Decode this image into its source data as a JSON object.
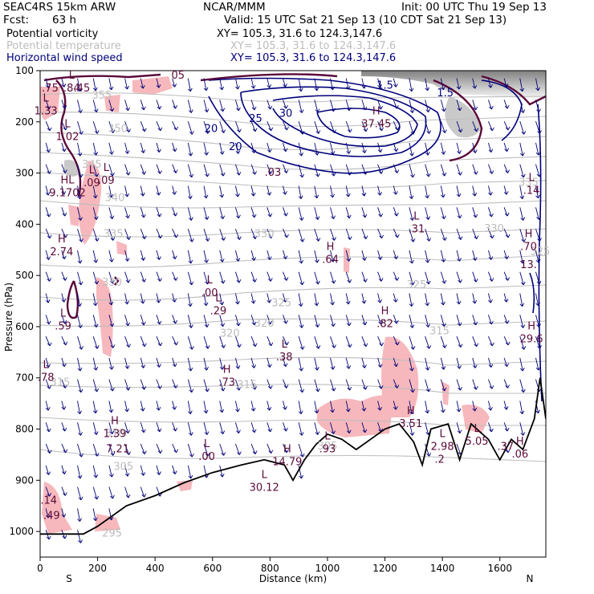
{
  "header": {
    "model": "SEAC4RS 15km ARW",
    "org": "NCAR/MMM",
    "init": "Init: 00 UTC Thu 19 Sep 13",
    "fcst_label": "Fcst:",
    "fcst_value": "63 h",
    "valid": "Valid: 15 UTC Sat 21 Sep 13 (10 CDT Sat 21 Sep 13)"
  },
  "legend": [
    {
      "name": "Potential vorticity",
      "xy": "XY= 105.3, 31.6 to 124.3,147.6",
      "color": "#000000"
    },
    {
      "name": "Potential temperature",
      "xy": "XY= 105.3, 31.6 to 124.3,147.6",
      "color": "#bdbdbd"
    },
    {
      "name": "Horizontal wind speed",
      "xy": "XY= 105.3, 31.6 to 124.3,147.6",
      "color": "#00007a"
    }
  ],
  "colors": {
    "pv_contour": "#5a0a3a",
    "pv_fill": "#f6b8bc",
    "theta": "#bdbdbd",
    "wind": "#00007a",
    "terrain": "#000000",
    "high_pv_gray": "#9a9a9a"
  },
  "chart_data": {
    "type": "cross-section",
    "xlabel": "Distance (km)",
    "ylabel": "Pressure (hPa)",
    "xlim": [
      0,
      1760
    ],
    "ylim": [
      1050,
      100
    ],
    "x_ticks": [
      0,
      200,
      400,
      600,
      800,
      1000,
      1200,
      1400,
      1600
    ],
    "y_ticks": [
      100,
      200,
      300,
      400,
      500,
      600,
      700,
      800,
      900,
      1000
    ],
    "x_end_labels": {
      "left": "S",
      "right": "N"
    },
    "terrain": [
      [
        0,
        1005
      ],
      [
        150,
        1005
      ],
      [
        200,
        990
      ],
      [
        300,
        950
      ],
      [
        400,
        930
      ],
      [
        500,
        905
      ],
      [
        600,
        885
      ],
      [
        700,
        870
      ],
      [
        780,
        860
      ],
      [
        850,
        870
      ],
      [
        880,
        900
      ],
      [
        920,
        860
      ],
      [
        960,
        830
      ],
      [
        1000,
        810
      ],
      [
        1050,
        820
      ],
      [
        1100,
        840
      ],
      [
        1150,
        820
      ],
      [
        1200,
        800
      ],
      [
        1250,
        790
      ],
      [
        1300,
        825
      ],
      [
        1330,
        870
      ],
      [
        1360,
        800
      ],
      [
        1420,
        790
      ],
      [
        1460,
        860
      ],
      [
        1500,
        790
      ],
      [
        1560,
        820
      ],
      [
        1600,
        860
      ],
      [
        1640,
        820
      ],
      [
        1680,
        840
      ],
      [
        1720,
        780
      ],
      [
        1740,
        700
      ],
      [
        1760,
        780
      ]
    ],
    "theta_labels": [
      {
        "x": 215,
        "p": 155,
        "text": "355"
      },
      {
        "x": 270,
        "p": 220,
        "text": "350"
      },
      {
        "x": 180,
        "p": 290,
        "text": "345"
      },
      {
        "x": 260,
        "p": 355,
        "text": "340"
      },
      {
        "x": 255,
        "p": 425,
        "text": "335"
      },
      {
        "x": 1700,
        "p": 325,
        "text": "335"
      },
      {
        "x": 1580,
        "p": 415,
        "text": "330"
      },
      {
        "x": 250,
        "p": 520,
        "text": "330"
      },
      {
        "x": 780,
        "p": 425,
        "text": "330"
      },
      {
        "x": 840,
        "p": 560,
        "text": "325"
      },
      {
        "x": 1310,
        "p": 525,
        "text": "325"
      },
      {
        "x": 1740,
        "p": 460,
        "text": "325"
      },
      {
        "x": 660,
        "p": 620,
        "text": "320"
      },
      {
        "x": 780,
        "p": 600,
        "text": "320"
      },
      {
        "x": 1390,
        "p": 615,
        "text": "315"
      },
      {
        "x": 70,
        "p": 715,
        "text": "315"
      },
      {
        "x": 720,
        "p": 720,
        "text": "315"
      },
      {
        "x": 260,
        "p": 815,
        "text": "310"
      },
      {
        "x": 1000,
        "p": 840,
        "text": "305"
      },
      {
        "x": 290,
        "p": 880,
        "text": "305"
      },
      {
        "x": 250,
        "p": 1010,
        "text": "295"
      }
    ],
    "wind_labels": [
      {
        "x": 595,
        "p": 220,
        "text": "20"
      },
      {
        "x": 680,
        "p": 255,
        "text": "20"
      },
      {
        "x": 750,
        "p": 200,
        "text": "25"
      },
      {
        "x": 855,
        "p": 190,
        "text": "30"
      },
      {
        "x": 1200,
        "p": 135,
        "text": "1.5"
      },
      {
        "x": 1410,
        "p": 150,
        "text": "1.5"
      }
    ],
    "extrema": [
      {
        "x": 35,
        "p": 125,
        "type": "",
        "value": ".75"
      },
      {
        "x": 110,
        "p": 125,
        "type": "L",
        "value": ".84"
      },
      {
        "x": 145,
        "p": 125,
        "type": "",
        "value": ".45"
      },
      {
        "x": 20,
        "p": 170,
        "type": "L",
        "value": "1.33"
      },
      {
        "x": 95,
        "p": 220,
        "type": "L",
        "value": "1.02"
      },
      {
        "x": 95,
        "p": 330,
        "type": "HL",
        "value": "9.1702"
      },
      {
        "x": 180,
        "p": 310,
        "type": "L",
        "value": ".09"
      },
      {
        "x": 230,
        "p": 305,
        "type": "L",
        "value": ".09"
      },
      {
        "x": 810,
        "p": 290,
        "type": "",
        "value": ".03"
      },
      {
        "x": 1170,
        "p": 195,
        "type": "H",
        "value": "37.45"
      },
      {
        "x": 1710,
        "p": 325,
        "type": "L",
        "value": ".14"
      },
      {
        "x": 1310,
        "p": 400,
        "type": "L",
        "value": ".31"
      },
      {
        "x": 1700,
        "p": 435,
        "type": "H",
        "value": ".70"
      },
      {
        "x": 1700,
        "p": 470,
        "type": "",
        "value": "13."
      },
      {
        "x": 75,
        "p": 445,
        "type": "H",
        "value": "2.74"
      },
      {
        "x": 1010,
        "p": 460,
        "type": "H",
        "value": ".64"
      },
      {
        "x": 590,
        "p": 525,
        "type": "L",
        "value": ".00"
      },
      {
        "x": 620,
        "p": 560,
        "type": "L",
        "value": ".29"
      },
      {
        "x": 80,
        "p": 590,
        "type": "L",
        "value": ".59"
      },
      {
        "x": 1200,
        "p": 585,
        "type": "H",
        "value": ".82"
      },
      {
        "x": 1710,
        "p": 615,
        "type": "H",
        "value": "29.6"
      },
      {
        "x": 850,
        "p": 650,
        "type": "L",
        "value": ".38"
      },
      {
        "x": 20,
        "p": 690,
        "type": "L",
        "value": ".78"
      },
      {
        "x": 650,
        "p": 700,
        "type": "H",
        "value": ".73"
      },
      {
        "x": 1290,
        "p": 780,
        "type": "H",
        "value": "3.51"
      },
      {
        "x": 260,
        "p": 800,
        "type": "H",
        "value": "1.39"
      },
      {
        "x": 270,
        "p": 830,
        "type": "",
        "value": "7.21"
      },
      {
        "x": 1400,
        "p": 825,
        "type": "L",
        "value": "2.98"
      },
      {
        "x": 1000,
        "p": 830,
        "type": "L",
        "value": ".93"
      },
      {
        "x": 1520,
        "p": 815,
        "type": "L",
        "value": "5.05"
      },
      {
        "x": 1620,
        "p": 825,
        "type": "",
        "value": ".37"
      },
      {
        "x": 580,
        "p": 845,
        "type": "L",
        "value": ".00"
      },
      {
        "x": 860,
        "p": 855,
        "type": "H",
        "value": "14.79"
      },
      {
        "x": 1390,
        "p": 850,
        "type": "",
        "value": ".2"
      },
      {
        "x": 1670,
        "p": 840,
        "type": "H",
        "value": ".06"
      },
      {
        "x": 780,
        "p": 905,
        "type": "L",
        "value": "30.12"
      },
      {
        "x": 30,
        "p": 930,
        "type": "",
        "value": ".14"
      },
      {
        "x": 40,
        "p": 960,
        "type": "",
        "value": ".49"
      },
      {
        "x": 480,
        "p": 100,
        "type": "",
        "value": "05"
      }
    ]
  }
}
